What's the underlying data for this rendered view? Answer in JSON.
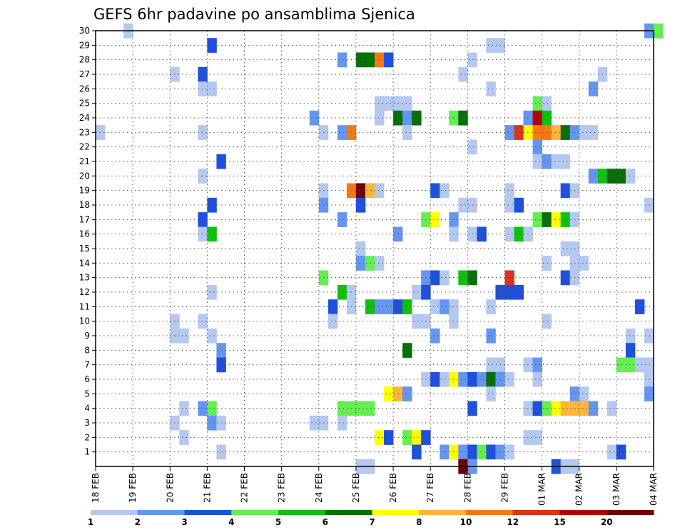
{
  "chart_data": {
    "type": "heatmap",
    "title": "GEFS 6hr padavine po ansamblima Sjenica",
    "xlabel": "",
    "ylabel": "",
    "x_tick_labels": [
      "18 FEB",
      "19 FEB",
      "20 FEB",
      "21 FEB",
      "22 FEB",
      "23 FEB",
      "24 FEB",
      "25 FEB",
      "26 FEB",
      "27 FEB",
      "28 FEB",
      "29 FEB",
      "01 MAR",
      "02 MAR",
      "03 MAR",
      "04 MAR"
    ],
    "y_tick_labels": [
      "1",
      "2",
      "3",
      "4",
      "5",
      "6",
      "7",
      "8",
      "9",
      "10",
      "11",
      "12",
      "13",
      "14",
      "15",
      "16",
      "17",
      "18",
      "19",
      "20",
      "21",
      "22",
      "23",
      "24",
      "25",
      "26",
      "27",
      "28",
      "29",
      "30"
    ],
    "y_range": [
      0,
      30
    ],
    "x_steps": 60,
    "grid": true,
    "legend": {
      "placement": "bottom",
      "levels": [
        "1",
        "2",
        "3",
        "4",
        "5",
        "6",
        "7",
        "8",
        "10",
        "12",
        "15",
        "20"
      ],
      "colors": [
        "#b4c8f0",
        "#6496f0",
        "#1e50dc",
        "#64ee52",
        "#10c010",
        "#0a6e0a",
        "#ffff00",
        "#ffb43c",
        "#f57814",
        "#dc321e",
        "#b40000",
        "#6e0000"
      ]
    },
    "cells": [
      [
        3,
        30,
        1
      ],
      [
        59,
        30,
        2
      ],
      [
        60,
        30,
        4
      ],
      [
        12,
        29,
        3
      ],
      [
        42,
        29,
        1
      ],
      [
        43,
        29,
        1
      ],
      [
        26,
        28,
        2
      ],
      [
        28,
        28,
        6
      ],
      [
        29,
        28,
        6
      ],
      [
        30,
        28,
        9
      ],
      [
        31,
        28,
        3
      ],
      [
        40,
        28,
        1
      ],
      [
        8,
        27,
        1
      ],
      [
        11,
        27,
        3
      ],
      [
        39,
        27,
        1
      ],
      [
        54,
        27,
        1
      ],
      [
        11,
        26,
        1
      ],
      [
        12,
        26,
        1
      ],
      [
        42,
        26,
        1
      ],
      [
        53,
        26,
        2
      ],
      [
        30,
        25,
        1
      ],
      [
        31,
        25,
        1
      ],
      [
        32,
        25,
        1
      ],
      [
        33,
        25,
        1
      ],
      [
        47,
        25,
        4
      ],
      [
        48,
        25,
        1
      ],
      [
        23,
        24,
        2
      ],
      [
        30,
        24,
        1
      ],
      [
        32,
        24,
        6
      ],
      [
        33,
        24,
        2
      ],
      [
        34,
        24,
        6
      ],
      [
        38,
        24,
        4
      ],
      [
        39,
        24,
        6
      ],
      [
        46,
        24,
        2
      ],
      [
        47,
        24,
        11
      ],
      [
        48,
        24,
        5
      ],
      [
        0,
        23,
        1
      ],
      [
        11,
        23,
        1
      ],
      [
        24,
        23,
        1
      ],
      [
        26,
        23,
        2
      ],
      [
        27,
        23,
        9
      ],
      [
        33,
        23,
        1
      ],
      [
        44,
        23,
        2
      ],
      [
        45,
        23,
        10
      ],
      [
        46,
        23,
        7
      ],
      [
        47,
        23,
        9
      ],
      [
        48,
        23,
        9
      ],
      [
        49,
        23,
        8
      ],
      [
        50,
        23,
        6
      ],
      [
        51,
        23,
        2
      ],
      [
        52,
        23,
        1
      ],
      [
        53,
        23,
        1
      ],
      [
        40,
        22,
        1
      ],
      [
        47,
        22,
        2
      ],
      [
        13,
        21,
        3
      ],
      [
        47,
        21,
        1
      ],
      [
        48,
        21,
        2
      ],
      [
        49,
        21,
        1
      ],
      [
        50,
        21,
        1
      ],
      [
        11,
        20,
        1
      ],
      [
        53,
        20,
        2
      ],
      [
        54,
        20,
        5
      ],
      [
        55,
        20,
        6
      ],
      [
        56,
        20,
        6
      ],
      [
        57,
        20,
        1
      ],
      [
        24,
        19,
        1
      ],
      [
        27,
        19,
        9
      ],
      [
        28,
        19,
        12
      ],
      [
        29,
        19,
        8
      ],
      [
        30,
        19,
        1
      ],
      [
        36,
        19,
        3
      ],
      [
        37,
        19,
        1
      ],
      [
        44,
        19,
        1
      ],
      [
        50,
        19,
        3
      ],
      [
        51,
        19,
        1
      ],
      [
        12,
        18,
        3
      ],
      [
        24,
        18,
        2
      ],
      [
        28,
        18,
        3
      ],
      [
        39,
        18,
        1
      ],
      [
        40,
        18,
        1
      ],
      [
        44,
        18,
        1
      ],
      [
        45,
        18,
        3
      ],
      [
        59,
        18,
        1
      ],
      [
        11,
        17,
        3
      ],
      [
        26,
        17,
        2
      ],
      [
        35,
        17,
        4
      ],
      [
        36,
        17,
        7
      ],
      [
        38,
        17,
        2
      ],
      [
        47,
        17,
        4
      ],
      [
        48,
        17,
        6
      ],
      [
        49,
        17,
        7
      ],
      [
        50,
        17,
        5
      ],
      [
        51,
        17,
        1
      ],
      [
        11,
        16,
        1
      ],
      [
        12,
        16,
        5
      ],
      [
        32,
        16,
        2
      ],
      [
        38,
        16,
        1
      ],
      [
        40,
        16,
        1
      ],
      [
        41,
        16,
        3
      ],
      [
        44,
        16,
        1
      ],
      [
        45,
        16,
        5
      ],
      [
        46,
        16,
        1
      ],
      [
        28,
        15,
        1
      ],
      [
        50,
        15,
        1
      ],
      [
        51,
        15,
        1
      ],
      [
        28,
        14,
        2
      ],
      [
        29,
        14,
        4
      ],
      [
        30,
        14,
        1
      ],
      [
        48,
        14,
        1
      ],
      [
        51,
        14,
        1
      ],
      [
        52,
        14,
        1
      ],
      [
        24,
        13,
        4
      ],
      [
        35,
        13,
        2
      ],
      [
        36,
        13,
        3
      ],
      [
        37,
        13,
        1
      ],
      [
        39,
        13,
        5
      ],
      [
        40,
        13,
        6
      ],
      [
        44,
        13,
        10
      ],
      [
        50,
        13,
        3
      ],
      [
        51,
        13,
        1
      ],
      [
        12,
        12,
        1
      ],
      [
        26,
        12,
        5
      ],
      [
        27,
        12,
        1
      ],
      [
        34,
        12,
        1
      ],
      [
        35,
        12,
        3
      ],
      [
        43,
        12,
        3
      ],
      [
        44,
        12,
        3
      ],
      [
        45,
        12,
        3
      ],
      [
        25,
        11,
        3
      ],
      [
        27,
        11,
        1
      ],
      [
        29,
        11,
        5
      ],
      [
        30,
        11,
        2
      ],
      [
        31,
        11,
        2
      ],
      [
        32,
        11,
        3
      ],
      [
        33,
        11,
        5
      ],
      [
        36,
        11,
        1
      ],
      [
        37,
        11,
        2
      ],
      [
        38,
        11,
        1
      ],
      [
        42,
        11,
        1
      ],
      [
        58,
        11,
        3
      ],
      [
        8,
        10,
        1
      ],
      [
        11,
        10,
        1
      ],
      [
        25,
        10,
        1
      ],
      [
        34,
        10,
        1
      ],
      [
        35,
        10,
        1
      ],
      [
        38,
        10,
        1
      ],
      [
        48,
        10,
        1
      ],
      [
        8,
        9,
        1
      ],
      [
        9,
        9,
        1
      ],
      [
        12,
        9,
        1
      ],
      [
        36,
        9,
        2
      ],
      [
        42,
        9,
        2
      ],
      [
        57,
        9,
        1
      ],
      [
        59,
        9,
        1
      ],
      [
        13,
        8,
        2
      ],
      [
        33,
        8,
        6
      ],
      [
        57,
        8,
        3
      ],
      [
        13,
        7,
        3
      ],
      [
        42,
        7,
        1
      ],
      [
        43,
        7,
        1
      ],
      [
        46,
        7,
        1
      ],
      [
        47,
        7,
        2
      ],
      [
        56,
        7,
        4
      ],
      [
        57,
        7,
        4
      ],
      [
        58,
        7,
        1
      ],
      [
        59,
        7,
        1
      ],
      [
        35,
        6,
        1
      ],
      [
        36,
        6,
        3
      ],
      [
        37,
        6,
        1
      ],
      [
        38,
        6,
        7
      ],
      [
        39,
        6,
        2
      ],
      [
        40,
        6,
        3
      ],
      [
        41,
        6,
        2
      ],
      [
        42,
        6,
        6
      ],
      [
        43,
        6,
        2
      ],
      [
        44,
        6,
        1
      ],
      [
        47,
        6,
        1
      ],
      [
        59,
        6,
        1
      ],
      [
        31,
        5,
        7
      ],
      [
        32,
        5,
        8
      ],
      [
        33,
        5,
        2
      ],
      [
        42,
        5,
        1
      ],
      [
        51,
        5,
        2
      ],
      [
        52,
        5,
        1
      ],
      [
        59,
        5,
        2
      ],
      [
        9,
        4,
        1
      ],
      [
        11,
        4,
        2
      ],
      [
        12,
        4,
        4
      ],
      [
        26,
        4,
        4
      ],
      [
        27,
        4,
        4
      ],
      [
        28,
        4,
        4
      ],
      [
        29,
        4,
        4
      ],
      [
        40,
        4,
        3
      ],
      [
        46,
        4,
        1
      ],
      [
        47,
        4,
        3
      ],
      [
        48,
        4,
        4
      ],
      [
        49,
        4,
        7
      ],
      [
        50,
        4,
        8
      ],
      [
        51,
        4,
        8
      ],
      [
        52,
        4,
        8
      ],
      [
        53,
        4,
        2
      ],
      [
        55,
        4,
        1
      ],
      [
        8,
        3,
        1
      ],
      [
        12,
        3,
        2
      ],
      [
        13,
        3,
        1
      ],
      [
        23,
        3,
        1
      ],
      [
        24,
        3,
        1
      ],
      [
        26,
        3,
        1
      ],
      [
        9,
        2,
        1
      ],
      [
        30,
        2,
        7
      ],
      [
        31,
        2,
        3
      ],
      [
        33,
        2,
        4
      ],
      [
        34,
        2,
        7
      ],
      [
        35,
        2,
        3
      ],
      [
        46,
        2,
        1
      ],
      [
        47,
        2,
        1
      ],
      [
        13,
        1,
        1
      ],
      [
        34,
        1,
        3
      ],
      [
        37,
        1,
        2
      ],
      [
        38,
        1,
        7
      ],
      [
        39,
        1,
        2
      ],
      [
        40,
        1,
        3
      ],
      [
        41,
        1,
        4
      ],
      [
        42,
        1,
        3
      ],
      [
        43,
        1,
        2
      ],
      [
        44,
        1,
        1
      ],
      [
        55,
        1,
        1
      ],
      [
        56,
        1,
        3
      ],
      [
        28,
        0,
        1
      ],
      [
        29,
        0,
        1
      ],
      [
        39,
        0,
        12
      ],
      [
        40,
        0,
        2
      ],
      [
        49,
        0,
        3
      ],
      [
        50,
        0,
        1
      ],
      [
        51,
        0,
        1
      ]
    ]
  }
}
